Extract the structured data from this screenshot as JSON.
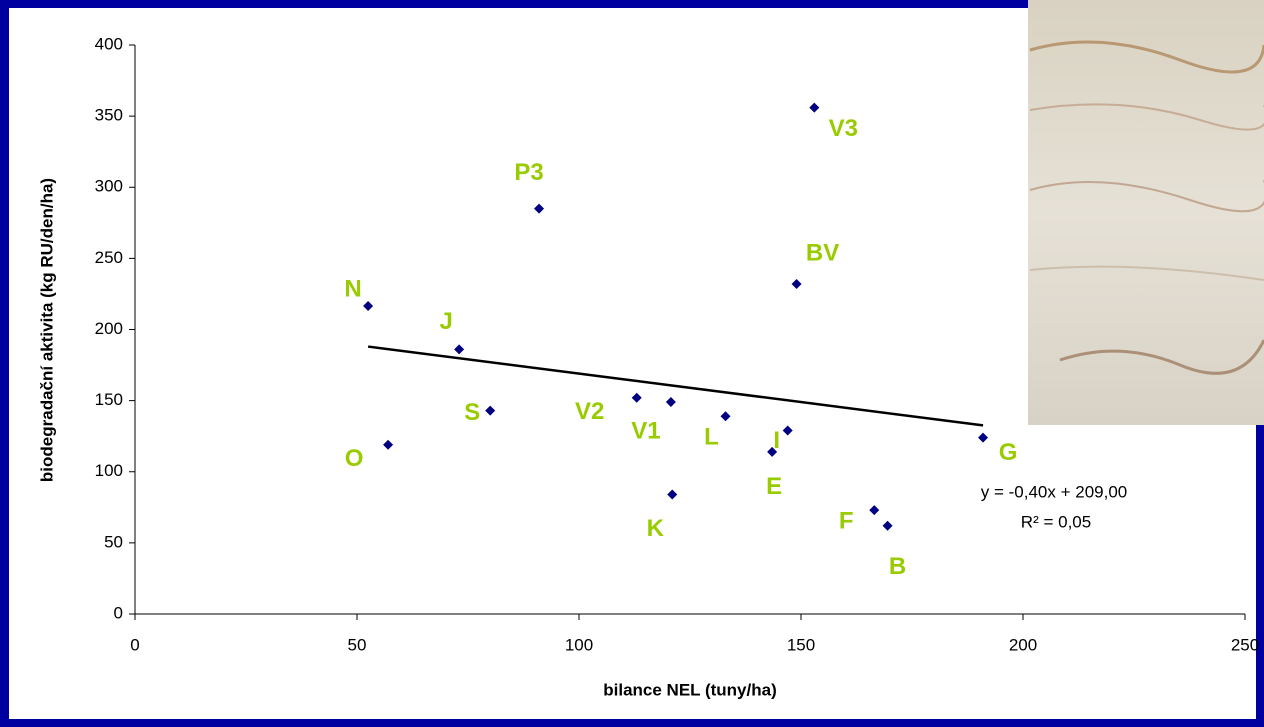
{
  "chart_data": {
    "type": "scatter",
    "x_label": "bilance NEL (tuny/ha)",
    "y_label": "biodegradační aktivita (kg RU/den/ha)",
    "labels": [
      "N",
      "O",
      "J",
      "S",
      "P3",
      "V2",
      "V1",
      "K",
      "L",
      "E",
      "I",
      "BV",
      "V3",
      "F",
      "B",
      "G"
    ],
    "x": [
      52.5,
      57,
      73,
      80,
      91,
      113,
      120.7,
      121,
      133,
      143.5,
      147,
      149,
      153,
      166.5,
      169.5,
      191
    ],
    "values": [
      216.5,
      119,
      186,
      143,
      285,
      152,
      149,
      84,
      139,
      114,
      129,
      232,
      356,
      73,
      62,
      124
    ],
    "color": "#000080",
    "label_color": "#99cc00",
    "xlim": [
      0,
      250
    ],
    "xticks": [
      0,
      50,
      100,
      150,
      200,
      250
    ],
    "ylim": [
      0,
      400
    ],
    "yticks": [
      0,
      50,
      100,
      150,
      200,
      250,
      300,
      350,
      400
    ],
    "trendline": {
      "slope": -0.4,
      "intercept": 209,
      "equation": "y = -0,40x + 209,00",
      "r2": "R² = 0,05"
    }
  }
}
